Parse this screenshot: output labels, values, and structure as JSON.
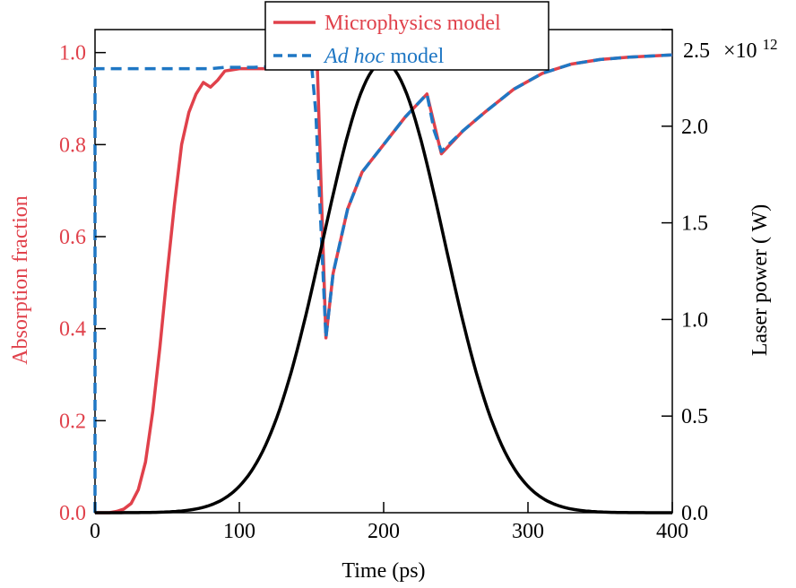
{
  "chart_data": {
    "type": "line",
    "x_axis": {
      "label": "Time (ps)",
      "range": [
        0,
        400
      ],
      "ticks": [
        0,
        100,
        200,
        300,
        400
      ],
      "tick_labels": [
        "0",
        "100",
        "200",
        "300",
        "400"
      ]
    },
    "y_axis_left": {
      "label": "Absorption fraction",
      "range": [
        0,
        1.05
      ],
      "ticks": [
        0,
        0.2,
        0.4,
        0.6,
        0.8,
        1.0
      ],
      "tick_labels": [
        "0.0",
        "0.2",
        "0.4",
        "0.6",
        "0.8",
        "1.0"
      ],
      "color": "#e0414b"
    },
    "y_axis_right": {
      "label": "Laser power ( W)",
      "range": [
        0,
        2.5
      ],
      "ticks": [
        0,
        0.5,
        1.0,
        1.5,
        2.0,
        2.5
      ],
      "tick_labels": [
        "0.0",
        "0.5",
        "1.0",
        "1.5",
        "2.0",
        "2.5"
      ],
      "multiplier_base": "×10",
      "multiplier_exponent": "12",
      "color": "#000000"
    },
    "legend": {
      "placement": "top-center",
      "entries": [
        {
          "label_parts": [
            {
              "text": "Microphysics model",
              "italic": false
            }
          ],
          "style": "solid",
          "color": "#e0414b"
        },
        {
          "label_parts": [
            {
              "text": "Ad hoc",
              "italic": true
            },
            {
              "text": " model",
              "italic": false
            }
          ],
          "style": "dashed",
          "color": "#1f77c4"
        }
      ]
    },
    "series": [
      {
        "name": "Microphysics model",
        "axis": "left",
        "color": "#e0414b",
        "style": "solid",
        "points": [
          [
            0,
            0
          ],
          [
            10,
            0
          ],
          [
            15,
            0.003
          ],
          [
            20,
            0.008
          ],
          [
            25,
            0.02
          ],
          [
            30,
            0.05
          ],
          [
            35,
            0.11
          ],
          [
            40,
            0.22
          ],
          [
            45,
            0.36
          ],
          [
            50,
            0.52
          ],
          [
            55,
            0.67
          ],
          [
            60,
            0.8
          ],
          [
            65,
            0.87
          ],
          [
            70,
            0.91
          ],
          [
            75,
            0.935
          ],
          [
            80,
            0.925
          ],
          [
            85,
            0.94
          ],
          [
            90,
            0.96
          ],
          [
            100,
            0.965
          ],
          [
            120,
            0.965
          ],
          [
            130,
            0.975
          ],
          [
            154,
            0.975
          ],
          [
            160,
            0.38
          ],
          [
            165,
            0.52
          ],
          [
            175,
            0.66
          ],
          [
            185,
            0.74
          ],
          [
            200,
            0.8
          ],
          [
            215,
            0.86
          ],
          [
            230,
            0.91
          ],
          [
            240,
            0.78
          ],
          [
            255,
            0.83
          ],
          [
            270,
            0.87
          ],
          [
            290,
            0.92
          ],
          [
            310,
            0.955
          ],
          [
            330,
            0.975
          ],
          [
            350,
            0.985
          ],
          [
            370,
            0.99
          ],
          [
            400,
            0.995
          ]
        ]
      },
      {
        "name": "Ad hoc model",
        "axis": "left",
        "color": "#1f77c4",
        "style": "dashed",
        "points": [
          [
            0,
            0
          ],
          [
            0,
            0.965
          ],
          [
            10,
            0.965
          ],
          [
            50,
            0.965
          ],
          [
            80,
            0.965
          ],
          [
            90,
            0.968
          ],
          [
            110,
            0.968
          ],
          [
            125,
            0.97
          ],
          [
            130,
            0.975
          ],
          [
            150,
            0.975
          ],
          [
            153,
            0.87
          ],
          [
            160,
            0.38
          ],
          [
            165,
            0.52
          ],
          [
            175,
            0.66
          ],
          [
            185,
            0.74
          ],
          [
            200,
            0.8
          ],
          [
            215,
            0.86
          ],
          [
            230,
            0.91
          ],
          [
            235,
            0.83
          ],
          [
            240,
            0.785
          ],
          [
            255,
            0.83
          ],
          [
            270,
            0.87
          ],
          [
            290,
            0.92
          ],
          [
            310,
            0.955
          ],
          [
            330,
            0.975
          ],
          [
            350,
            0.985
          ],
          [
            370,
            0.99
          ],
          [
            400,
            0.995
          ]
        ]
      },
      {
        "name": "Laser power",
        "axis": "right",
        "color": "#000000",
        "style": "solid",
        "gaussian": {
          "peak": 2.33,
          "center": 200,
          "sigma": 42
        },
        "x_range": [
          0,
          400
        ]
      }
    ]
  }
}
